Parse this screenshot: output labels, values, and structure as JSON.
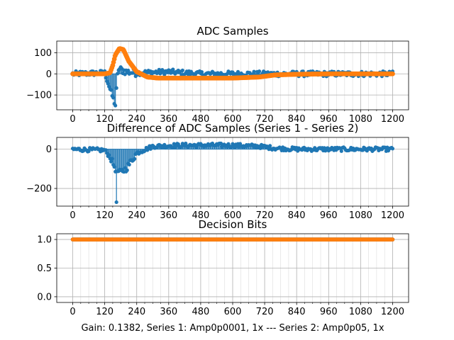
{
  "figure_xlabel": "Gain: 0.1382, Series 1: Amp0p0001, 1x --- Series 2: Amp0p05, 1x",
  "colors": {
    "series1": "#1f77b4",
    "series2": "#ff7f0e",
    "grid": "#b0b0b0"
  },
  "chart_data": [
    {
      "id": "adc",
      "type": "scatter",
      "title": "ADC Samples",
      "xlim": [
        -60,
        1260
      ],
      "ylim": [
        -170,
        155
      ],
      "xticks": [
        0,
        120,
        240,
        360,
        480,
        600,
        720,
        840,
        960,
        1080,
        1200
      ],
      "yticks": [
        -100,
        0,
        100
      ],
      "grid": true,
      "series": [
        {
          "name": "Series 1",
          "style": "stem",
          "description_points": [
            [
              0,
              0
            ],
            [
              120,
              5
            ],
            [
              160,
              -150
            ],
            [
              170,
              25
            ],
            [
              200,
              10
            ],
            [
              240,
              5
            ],
            [
              360,
              10
            ],
            [
              480,
              0
            ],
            [
              600,
              0
            ],
            [
              720,
              0
            ],
            [
              840,
              0
            ],
            [
              960,
              0
            ],
            [
              1080,
              0
            ],
            [
              1200,
              0
            ]
          ],
          "noise_amplitude": 25
        },
        {
          "name": "Series 2",
          "style": "line-dots",
          "points": [
            [
              0,
              0
            ],
            [
              120,
              0
            ],
            [
              140,
              5
            ],
            [
              150,
              40
            ],
            [
              160,
              90
            ],
            [
              175,
              120
            ],
            [
              190,
              115
            ],
            [
              210,
              60
            ],
            [
              240,
              10
            ],
            [
              280,
              -15
            ],
            [
              320,
              -20
            ],
            [
              600,
              -20
            ],
            [
              700,
              -15
            ],
            [
              760,
              -5
            ],
            [
              840,
              -2
            ],
            [
              960,
              0
            ],
            [
              1200,
              0
            ]
          ]
        }
      ]
    },
    {
      "id": "diff",
      "type": "scatter",
      "title": "Difference of ADC Samples (Series 1 - Series 2)",
      "xlim": [
        -60,
        1260
      ],
      "ylim": [
        -290,
        60
      ],
      "xticks": [
        0,
        120,
        240,
        360,
        480,
        600,
        720,
        840,
        960,
        1080,
        1200
      ],
      "yticks": [
        -200,
        0
      ],
      "grid": true,
      "series": [
        {
          "name": "Series 1 - Series 2",
          "style": "stem",
          "points": [
            [
              0,
              0
            ],
            [
              120,
              -5
            ],
            [
              140,
              -40
            ],
            [
              160,
              -100
            ],
            [
              175,
              -120
            ],
            [
              200,
              -100
            ],
            [
              240,
              -20
            ],
            [
              300,
              15
            ],
            [
              400,
              20
            ],
            [
              600,
              20
            ],
            [
              700,
              15
            ],
            [
              760,
              5
            ],
            [
              840,
              0
            ],
            [
              1200,
              0
            ]
          ],
          "noise_amplitude": 20,
          "spike": [
            165,
            -270
          ]
        }
      ]
    },
    {
      "id": "bits",
      "type": "scatter",
      "title": "Decision Bits",
      "xlim": [
        -60,
        1260
      ],
      "ylim": [
        -0.1,
        1.1
      ],
      "xticks": [
        0,
        120,
        240,
        360,
        480,
        600,
        720,
        840,
        960,
        1080,
        1200
      ],
      "yticks": [
        0.0,
        0.5,
        1.0
      ],
      "ytick_labels": [
        "0.0",
        "0.5",
        "1.0"
      ],
      "grid": true,
      "series": [
        {
          "name": "Series 1",
          "style": "dots",
          "constant": 1.0
        },
        {
          "name": "Series 2",
          "style": "dots",
          "constant": 1.0
        }
      ]
    }
  ]
}
